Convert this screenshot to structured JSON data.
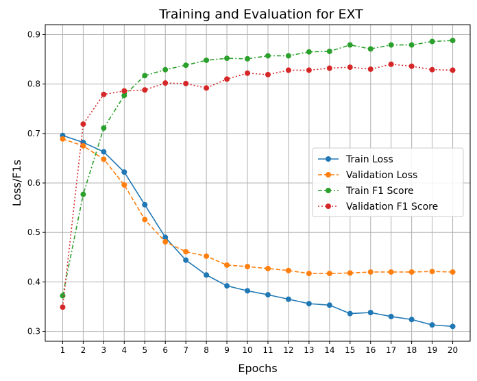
{
  "chart_data": {
    "type": "line",
    "title": "Training and Evaluation for EXT",
    "xlabel": "Epochs",
    "ylabel": "Loss/F1s",
    "x": [
      1,
      2,
      3,
      4,
      5,
      6,
      7,
      8,
      9,
      10,
      11,
      12,
      13,
      14,
      15,
      16,
      17,
      18,
      19,
      20
    ],
    "xlim": [
      0.15,
      20.85
    ],
    "ylim": [
      0.28,
      0.92
    ],
    "yticks": [
      0.3,
      0.4,
      0.5,
      0.6,
      0.7,
      0.8,
      0.9
    ],
    "ytick_labels": [
      "0.3",
      "0.4",
      "0.5",
      "0.6",
      "0.7",
      "0.8",
      "0.9"
    ],
    "grid": true,
    "legend_position": "center-right",
    "series": [
      {
        "name": "Train Loss",
        "color": "#1f77b4",
        "linestyle": "solid",
        "marker": "circle",
        "values": [
          0.696,
          0.682,
          0.663,
          0.622,
          0.556,
          0.49,
          0.444,
          0.414,
          0.392,
          0.382,
          0.374,
          0.365,
          0.356,
          0.353,
          0.336,
          0.338,
          0.33,
          0.324,
          0.313,
          0.31
        ]
      },
      {
        "name": "Validation Loss",
        "color": "#ff7f0e",
        "linestyle": "dashed",
        "marker": "circle",
        "values": [
          0.689,
          0.675,
          0.648,
          0.596,
          0.526,
          0.481,
          0.461,
          0.452,
          0.434,
          0.431,
          0.427,
          0.423,
          0.417,
          0.417,
          0.418,
          0.42,
          0.42,
          0.42,
          0.421,
          0.42
        ]
      },
      {
        "name": "Train F1 Score",
        "color": "#2ca02c",
        "linestyle": "dashdot",
        "marker": "circle",
        "values": [
          0.372,
          0.577,
          0.711,
          0.777,
          0.817,
          0.829,
          0.838,
          0.848,
          0.852,
          0.851,
          0.857,
          0.857,
          0.865,
          0.866,
          0.879,
          0.871,
          0.879,
          0.879,
          0.886,
          0.888
        ]
      },
      {
        "name": "Validation F1 Score",
        "color": "#d62728",
        "linestyle": "dotted",
        "marker": "circle",
        "values": [
          0.349,
          0.719,
          0.779,
          0.786,
          0.788,
          0.802,
          0.801,
          0.792,
          0.81,
          0.822,
          0.819,
          0.828,
          0.828,
          0.832,
          0.834,
          0.83,
          0.84,
          0.836,
          0.829,
          0.828
        ]
      }
    ]
  }
}
